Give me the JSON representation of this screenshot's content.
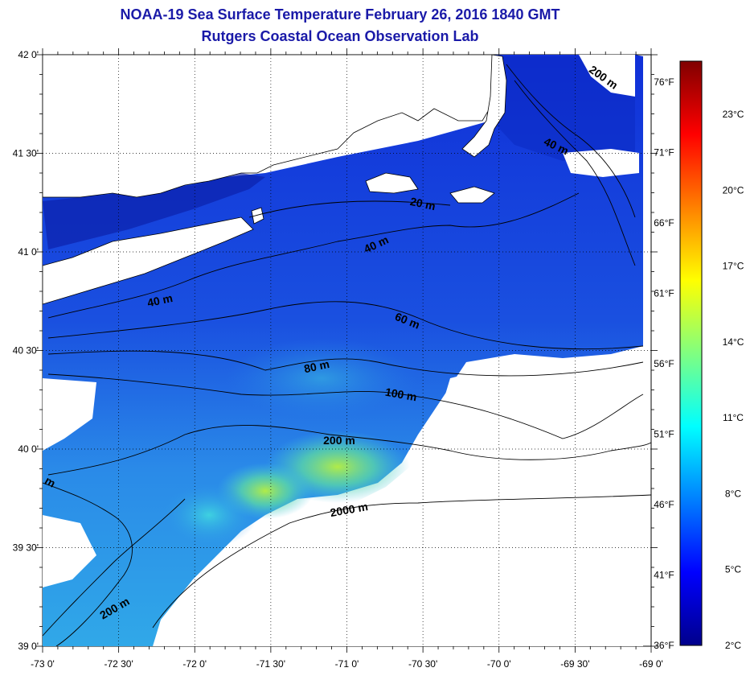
{
  "title": "NOAA-19 Sea Surface Temperature February 26, 2016 1840 GMT",
  "subtitle": "Rutgers Coastal Ocean Observation Lab",
  "map": {
    "lon_range": [
      -73,
      -69
    ],
    "lat_range": [
      39,
      42
    ],
    "lon_ticks": [
      "-73 0'",
      "-72 30'",
      "-72 0'",
      "-71 30'",
      "-71 0'",
      "-70 30'",
      "-70 0'",
      "-69 30'",
      "-69 0'"
    ],
    "lat_ticks": [
      "42 0'",
      "41 30'",
      "41 0'",
      "40 30'",
      "40 0'",
      "39 30'",
      "39 0'"
    ],
    "grid": true,
    "contour_labels": [
      "20 m",
      "40 m",
      "40 m",
      "40 m",
      "60 m",
      "80 m",
      "100 m",
      "200 m",
      "200 m",
      "200 m",
      "2000 m",
      "m"
    ]
  },
  "colorbar": {
    "celsius_labels": [
      "2°C",
      "5°C",
      "8°C",
      "11°C",
      "14°C",
      "17°C",
      "20°C",
      "23°C"
    ],
    "fahrenheit_labels": [
      "36°F",
      "41°F",
      "46°F",
      "51°F",
      "56°F",
      "61°F",
      "66°F",
      "71°F",
      "76°F"
    ],
    "colors": [
      "#00008b",
      "#0000ff",
      "#0080ff",
      "#00ffff",
      "#80ff80",
      "#ffff00",
      "#ff8000",
      "#ff0000",
      "#800000"
    ]
  },
  "colors": {
    "title": "#1a1aa8",
    "land": "#ffffff",
    "cold_water": "#1e3fd6"
  }
}
